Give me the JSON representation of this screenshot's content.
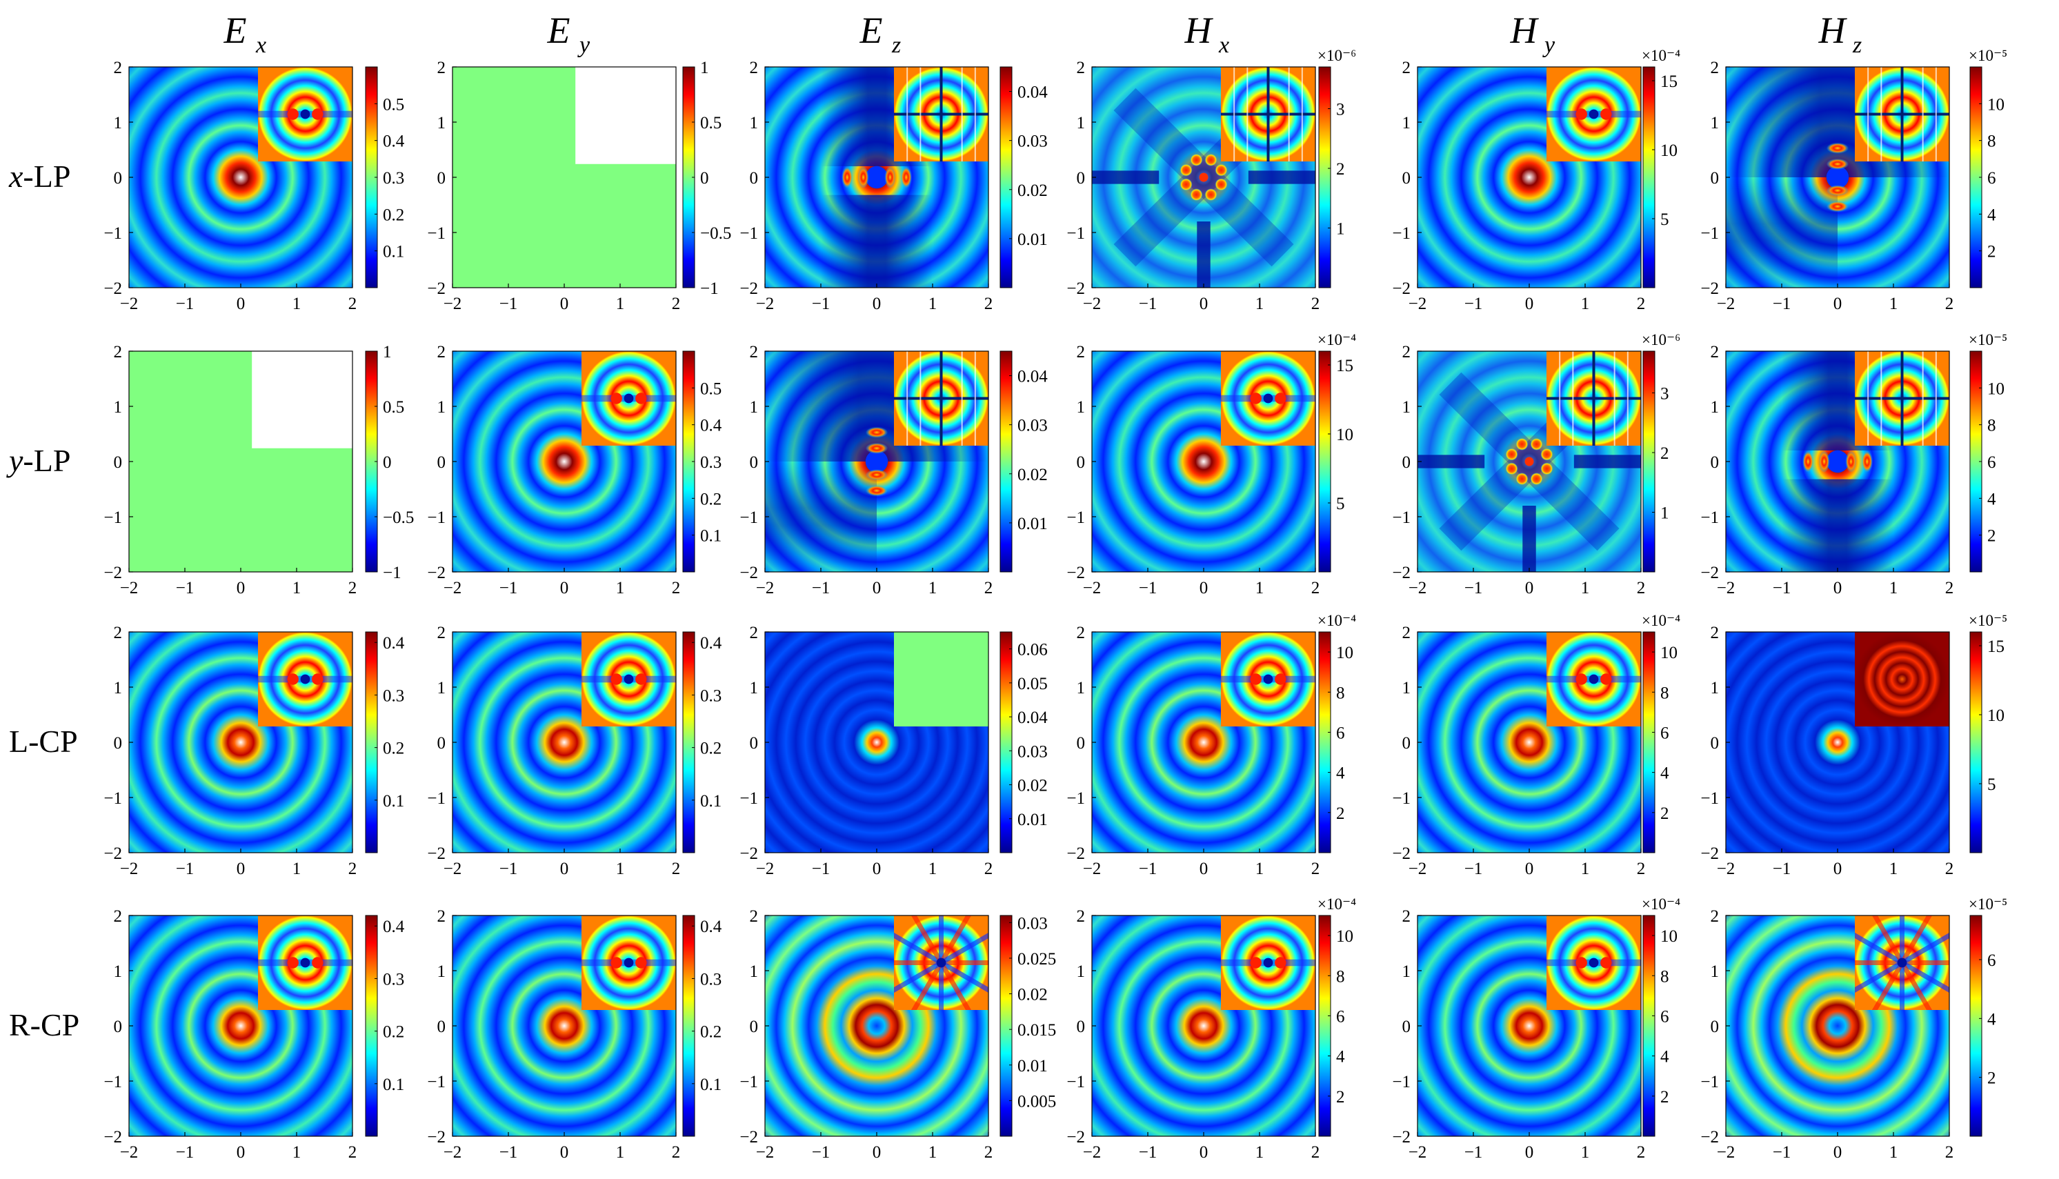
{
  "column_titles": [
    {
      "main": "E",
      "sub": "x"
    },
    {
      "main": "E",
      "sub": "y"
    },
    {
      "main": "E",
      "sub": "z"
    },
    {
      "main": "H",
      "sub": "x"
    },
    {
      "main": "H",
      "sub": "y"
    },
    {
      "main": "H",
      "sub": "z"
    }
  ],
  "row_labels": [
    {
      "prefix": "x",
      "suffix": "-LP"
    },
    {
      "prefix": "y",
      "suffix": "-LP"
    },
    {
      "prefix": "",
      "suffix": "L-CP"
    },
    {
      "prefix": "",
      "suffix": "R-CP"
    }
  ],
  "axis_ticks": [
    "−2",
    "−1",
    "0",
    "1",
    "2"
  ],
  "colormap": "jet",
  "colors": {
    "flat": "#80ff80",
    "background": "#ffffff"
  },
  "chart_data": [
    {
      "type": "heatmap",
      "row": 0,
      "col": 0,
      "pattern": "rings",
      "main_kind": "peak",
      "inset": "dipole",
      "clim": [
        0,
        0.6
      ],
      "colorbar_ticks": [
        "0.1",
        "0.2",
        "0.3",
        "0.4",
        "0.5"
      ],
      "exponent": ""
    },
    {
      "type": "heatmap",
      "row": 0,
      "col": 1,
      "pattern": "flat",
      "main_kind": "flat",
      "inset": "none",
      "clim": [
        -1,
        1
      ],
      "colorbar_ticks": [
        "−1",
        "−0.5",
        "0",
        "0.5",
        "1"
      ],
      "exponent": ""
    },
    {
      "type": "heatmap",
      "row": 0,
      "col": 2,
      "pattern": "lobes-horizontal",
      "main_kind": "lobes",
      "inset": "grid",
      "clim": [
        0,
        0.045
      ],
      "colorbar_ticks": [
        "0.01",
        "0.02",
        "0.03",
        "0.04"
      ],
      "exponent": ""
    },
    {
      "type": "heatmap",
      "row": 0,
      "col": 3,
      "pattern": "four-lobe",
      "main_kind": "quad",
      "inset": "grid",
      "clim": [
        0,
        3.7e-06
      ],
      "colorbar_ticks": [
        "1",
        "2",
        "3"
      ],
      "exponent": "×10⁻⁶"
    },
    {
      "type": "heatmap",
      "row": 0,
      "col": 4,
      "pattern": "rings",
      "main_kind": "peak",
      "inset": "dipole",
      "clim": [
        0,
        0.0016
      ],
      "colorbar_ticks": [
        "5",
        "10",
        "15"
      ],
      "exponent": "×10⁻⁴"
    },
    {
      "type": "heatmap",
      "row": 0,
      "col": 5,
      "pattern": "lobes-vertical",
      "main_kind": "lobes",
      "inset": "grid",
      "clim": [
        0,
        0.00012
      ],
      "colorbar_ticks": [
        "2",
        "4",
        "6",
        "8",
        "10"
      ],
      "exponent": "×10⁻⁵"
    },
    {
      "type": "heatmap",
      "row": 1,
      "col": 0,
      "pattern": "flat",
      "main_kind": "flat",
      "inset": "none",
      "clim": [
        -1,
        1
      ],
      "colorbar_ticks": [
        "−1",
        "−0.5",
        "0",
        "0.5",
        "1"
      ],
      "exponent": ""
    },
    {
      "type": "heatmap",
      "row": 1,
      "col": 1,
      "pattern": "rings",
      "main_kind": "peak",
      "inset": "dipole",
      "clim": [
        0,
        0.6
      ],
      "colorbar_ticks": [
        "0.1",
        "0.2",
        "0.3",
        "0.4",
        "0.5"
      ],
      "exponent": ""
    },
    {
      "type": "heatmap",
      "row": 1,
      "col": 2,
      "pattern": "lobes-vertical",
      "main_kind": "lobes",
      "inset": "grid",
      "clim": [
        0,
        0.045
      ],
      "colorbar_ticks": [
        "0.01",
        "0.02",
        "0.03",
        "0.04"
      ],
      "exponent": ""
    },
    {
      "type": "heatmap",
      "row": 1,
      "col": 3,
      "pattern": "rings",
      "main_kind": "peak",
      "inset": "dipole",
      "clim": [
        0,
        0.0016
      ],
      "colorbar_ticks": [
        "5",
        "10",
        "15"
      ],
      "exponent": "×10⁻⁴"
    },
    {
      "type": "heatmap",
      "row": 1,
      "col": 4,
      "pattern": "four-lobe",
      "main_kind": "quad",
      "inset": "grid",
      "clim": [
        0,
        3.7e-06
      ],
      "colorbar_ticks": [
        "1",
        "2",
        "3"
      ],
      "exponent": "×10⁻⁶"
    },
    {
      "type": "heatmap",
      "row": 1,
      "col": 5,
      "pattern": "lobes-horizontal",
      "main_kind": "lobes",
      "inset": "grid",
      "clim": [
        0,
        0.00012
      ],
      "colorbar_ticks": [
        "2",
        "4",
        "6",
        "8",
        "10"
      ],
      "exponent": "×10⁻⁵"
    },
    {
      "type": "heatmap",
      "row": 2,
      "col": 0,
      "pattern": "rings",
      "main_kind": "ring",
      "inset": "dipole",
      "clim": [
        0,
        0.42
      ],
      "colorbar_ticks": [
        "0.1",
        "0.2",
        "0.3",
        "0.4"
      ],
      "exponent": ""
    },
    {
      "type": "heatmap",
      "row": 2,
      "col": 1,
      "pattern": "rings",
      "main_kind": "ring",
      "inset": "dipole",
      "clim": [
        0,
        0.42
      ],
      "colorbar_ticks": [
        "0.1",
        "0.2",
        "0.3",
        "0.4"
      ],
      "exponent": ""
    },
    {
      "type": "heatmap",
      "row": 2,
      "col": 2,
      "pattern": "rings-weak",
      "main_kind": "dim",
      "inset": "flat",
      "clim": [
        0,
        0.065
      ],
      "colorbar_ticks": [
        "0.01",
        "0.02",
        "0.03",
        "0.04",
        "0.05",
        "0.06"
      ],
      "exponent": ""
    },
    {
      "type": "heatmap",
      "row": 2,
      "col": 3,
      "pattern": "rings",
      "main_kind": "ring",
      "inset": "dipole",
      "clim": [
        0,
        0.0011
      ],
      "colorbar_ticks": [
        "2",
        "4",
        "6",
        "8",
        "10"
      ],
      "exponent": "×10⁻⁴"
    },
    {
      "type": "heatmap",
      "row": 2,
      "col": 4,
      "pattern": "rings",
      "main_kind": "ring",
      "inset": "dipole",
      "clim": [
        0,
        0.0011
      ],
      "colorbar_ticks": [
        "2",
        "4",
        "6",
        "8",
        "10"
      ],
      "exponent": "×10⁻⁴"
    },
    {
      "type": "heatmap",
      "row": 2,
      "col": 5,
      "pattern": "rings-weak",
      "main_kind": "dim",
      "inset": "target",
      "clim": [
        0,
        0.00016
      ],
      "colorbar_ticks": [
        "5",
        "10",
        "15"
      ],
      "exponent": "×10⁻⁵"
    },
    {
      "type": "heatmap",
      "row": 3,
      "col": 0,
      "pattern": "rings",
      "main_kind": "ring",
      "inset": "dipole",
      "clim": [
        0,
        0.42
      ],
      "colorbar_ticks": [
        "0.1",
        "0.2",
        "0.3",
        "0.4"
      ],
      "exponent": ""
    },
    {
      "type": "heatmap",
      "row": 3,
      "col": 1,
      "pattern": "rings",
      "main_kind": "ring",
      "inset": "dipole",
      "clim": [
        0,
        0.42
      ],
      "colorbar_ticks": [
        "0.1",
        "0.2",
        "0.3",
        "0.4"
      ],
      "exponent": ""
    },
    {
      "type": "heatmap",
      "row": 3,
      "col": 2,
      "pattern": "rings-bright",
      "main_kind": "bigring",
      "inset": "spokes",
      "clim": [
        0,
        0.031
      ],
      "colorbar_ticks": [
        "0.005",
        "0.01",
        "0.015",
        "0.02",
        "0.025",
        "0.03"
      ],
      "exponent": ""
    },
    {
      "type": "heatmap",
      "row": 3,
      "col": 3,
      "pattern": "rings",
      "main_kind": "ring",
      "inset": "dipole",
      "clim": [
        0,
        0.0011
      ],
      "colorbar_ticks": [
        "2",
        "4",
        "6",
        "8",
        "10"
      ],
      "exponent": "×10⁻⁴"
    },
    {
      "type": "heatmap",
      "row": 3,
      "col": 4,
      "pattern": "rings",
      "main_kind": "ring",
      "inset": "dipole",
      "clim": [
        0,
        0.0011
      ],
      "colorbar_ticks": [
        "2",
        "4",
        "6",
        "8",
        "10"
      ],
      "exponent": "×10⁻⁴"
    },
    {
      "type": "heatmap",
      "row": 3,
      "col": 5,
      "pattern": "rings-bright",
      "main_kind": "bigring",
      "inset": "spokes",
      "clim": [
        0,
        7.5e-05
      ],
      "colorbar_ticks": [
        "2",
        "4",
        "6"
      ],
      "exponent": "×10⁻⁵"
    }
  ]
}
